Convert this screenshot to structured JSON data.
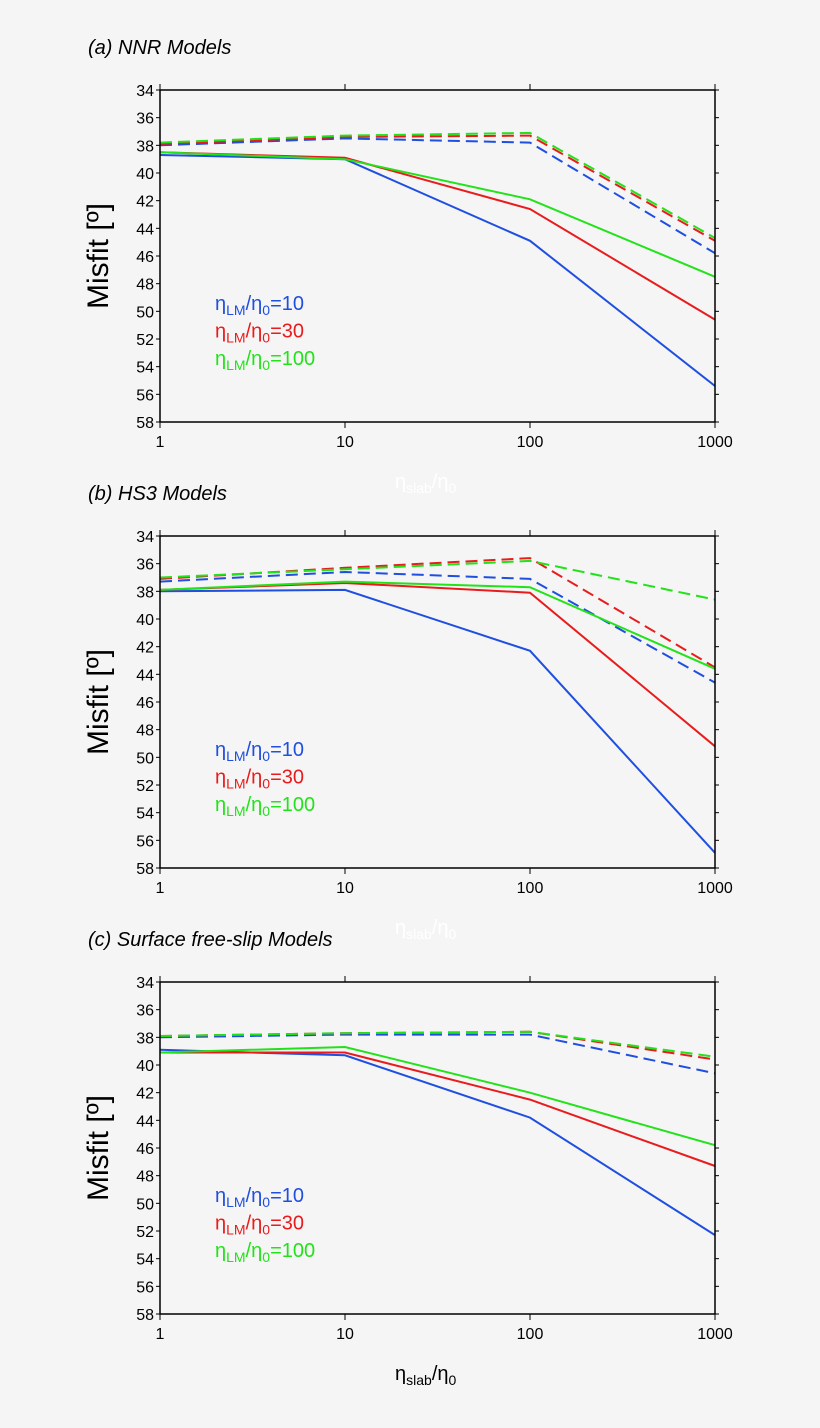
{
  "colors": {
    "blue": "#1f4fe0",
    "red": "#e81c1c",
    "green": "#22e21a",
    "background": "#f5f5f5"
  },
  "chart_data": [
    {
      "type": "line",
      "title": "(a) NNR Models",
      "xlabel": {
        "base": "η",
        "sub": "slab",
        "mid": "/η",
        "sub2": "0"
      },
      "xlabel_color": "#ffffff",
      "ylabel": "Misfit [º]",
      "x": [
        1,
        10,
        100,
        1000
      ],
      "x_scale": "log",
      "xticks": [
        "1",
        "10",
        "100",
        "1000"
      ],
      "ylim": [
        34,
        58
      ],
      "y_inverted": true,
      "yticks": [
        "34",
        "36",
        "38",
        "40",
        "42",
        "44",
        "46",
        "48",
        "50",
        "52",
        "54",
        "56",
        "58"
      ],
      "grid": false,
      "legend_placement": "lower-left",
      "legend": [
        {
          "base": "η",
          "sub": "LM",
          "mid": "/η",
          "sub2": "0",
          "suffix": "=10",
          "color": "blue"
        },
        {
          "base": "η",
          "sub": "LM",
          "mid": "/η",
          "sub2": "0",
          "suffix": "=30",
          "color": "red"
        },
        {
          "base": "η",
          "sub": "LM",
          "mid": "/η",
          "sub2": "0",
          "suffix": "=100",
          "color": "green"
        }
      ],
      "series": [
        {
          "color": "blue",
          "style": "dashed",
          "values": [
            38.0,
            37.5,
            37.8,
            45.8
          ]
        },
        {
          "color": "red",
          "style": "dashed",
          "values": [
            37.9,
            37.4,
            37.3,
            44.9
          ]
        },
        {
          "color": "green",
          "style": "dashed",
          "values": [
            37.8,
            37.3,
            37.1,
            44.7
          ]
        },
        {
          "color": "blue",
          "style": "solid",
          "values": [
            38.7,
            39.0,
            44.9,
            55.4
          ]
        },
        {
          "color": "red",
          "style": "solid",
          "values": [
            38.5,
            38.9,
            42.6,
            50.6
          ]
        },
        {
          "color": "green",
          "style": "solid",
          "values": [
            38.5,
            39.0,
            41.9,
            47.5
          ]
        }
      ]
    },
    {
      "type": "line",
      "title": "(b) HS3 Models",
      "xlabel": {
        "base": "η",
        "sub": "slab",
        "mid": "/η",
        "sub2": "0"
      },
      "xlabel_color": "#ffffff",
      "ylabel": "Misfit [º]",
      "x": [
        1,
        10,
        100,
        1000
      ],
      "x_scale": "log",
      "xticks": [
        "1",
        "10",
        "100",
        "1000"
      ],
      "ylim": [
        34,
        58
      ],
      "y_inverted": true,
      "yticks": [
        "34",
        "36",
        "38",
        "40",
        "42",
        "44",
        "46",
        "48",
        "50",
        "52",
        "54",
        "56",
        "58"
      ],
      "grid": false,
      "legend_placement": "lower-left",
      "legend": [
        {
          "base": "η",
          "sub": "LM",
          "mid": "/η",
          "sub2": "0",
          "suffix": "=10",
          "color": "blue"
        },
        {
          "base": "η",
          "sub": "LM",
          "mid": "/η",
          "sub2": "0",
          "suffix": "=30",
          "color": "red"
        },
        {
          "base": "η",
          "sub": "LM",
          "mid": "/η",
          "sub2": "0",
          "suffix": "=100",
          "color": "green"
        }
      ],
      "series": [
        {
          "color": "blue",
          "style": "dashed",
          "values": [
            37.3,
            36.6,
            37.1,
            44.6
          ]
        },
        {
          "color": "red",
          "style": "dashed",
          "values": [
            37.1,
            36.3,
            35.6,
            43.5
          ]
        },
        {
          "color": "green",
          "style": "dashed",
          "values": [
            37.0,
            36.4,
            35.8,
            38.6
          ]
        },
        {
          "color": "blue",
          "style": "solid",
          "values": [
            38.0,
            37.9,
            42.3,
            56.9
          ]
        },
        {
          "color": "red",
          "style": "solid",
          "values": [
            37.9,
            37.4,
            38.1,
            49.2
          ]
        },
        {
          "color": "green",
          "style": "solid",
          "values": [
            37.9,
            37.3,
            37.7,
            43.6
          ]
        }
      ]
    },
    {
      "type": "line",
      "title": "(c) Surface free-slip Models",
      "xlabel": {
        "base": "η",
        "sub": "slab",
        "mid": "/η",
        "sub2": "0"
      },
      "xlabel_color": "#000000",
      "ylabel": "Misfit [º]",
      "x": [
        1,
        10,
        100,
        1000
      ],
      "x_scale": "log",
      "xticks": [
        "1",
        "10",
        "100",
        "1000"
      ],
      "ylim": [
        34,
        58
      ],
      "y_inverted": true,
      "yticks": [
        "34",
        "36",
        "38",
        "40",
        "42",
        "44",
        "46",
        "48",
        "50",
        "52",
        "54",
        "56",
        "58"
      ],
      "grid": false,
      "legend_placement": "lower-left",
      "legend": [
        {
          "base": "η",
          "sub": "LM",
          "mid": "/η",
          "sub2": "0",
          "suffix": "=10",
          "color": "blue"
        },
        {
          "base": "η",
          "sub": "LM",
          "mid": "/η",
          "sub2": "0",
          "suffix": "=30",
          "color": "red"
        },
        {
          "base": "η",
          "sub": "LM",
          "mid": "/η",
          "sub2": "0",
          "suffix": "=100",
          "color": "green"
        }
      ],
      "series": [
        {
          "color": "blue",
          "style": "dashed",
          "values": [
            38.0,
            37.8,
            37.8,
            40.6
          ]
        },
        {
          "color": "red",
          "style": "dashed",
          "values": [
            37.9,
            37.7,
            37.6,
            39.6
          ]
        },
        {
          "color": "green",
          "style": "dashed",
          "values": [
            37.9,
            37.7,
            37.6,
            39.4
          ]
        },
        {
          "color": "blue",
          "style": "solid",
          "values": [
            38.9,
            39.3,
            43.8,
            52.3
          ]
        },
        {
          "color": "red",
          "style": "solid",
          "values": [
            39.1,
            39.1,
            42.5,
            47.3
          ]
        },
        {
          "color": "green",
          "style": "solid",
          "values": [
            39.1,
            38.7,
            42.0,
            45.8
          ]
        }
      ]
    }
  ]
}
